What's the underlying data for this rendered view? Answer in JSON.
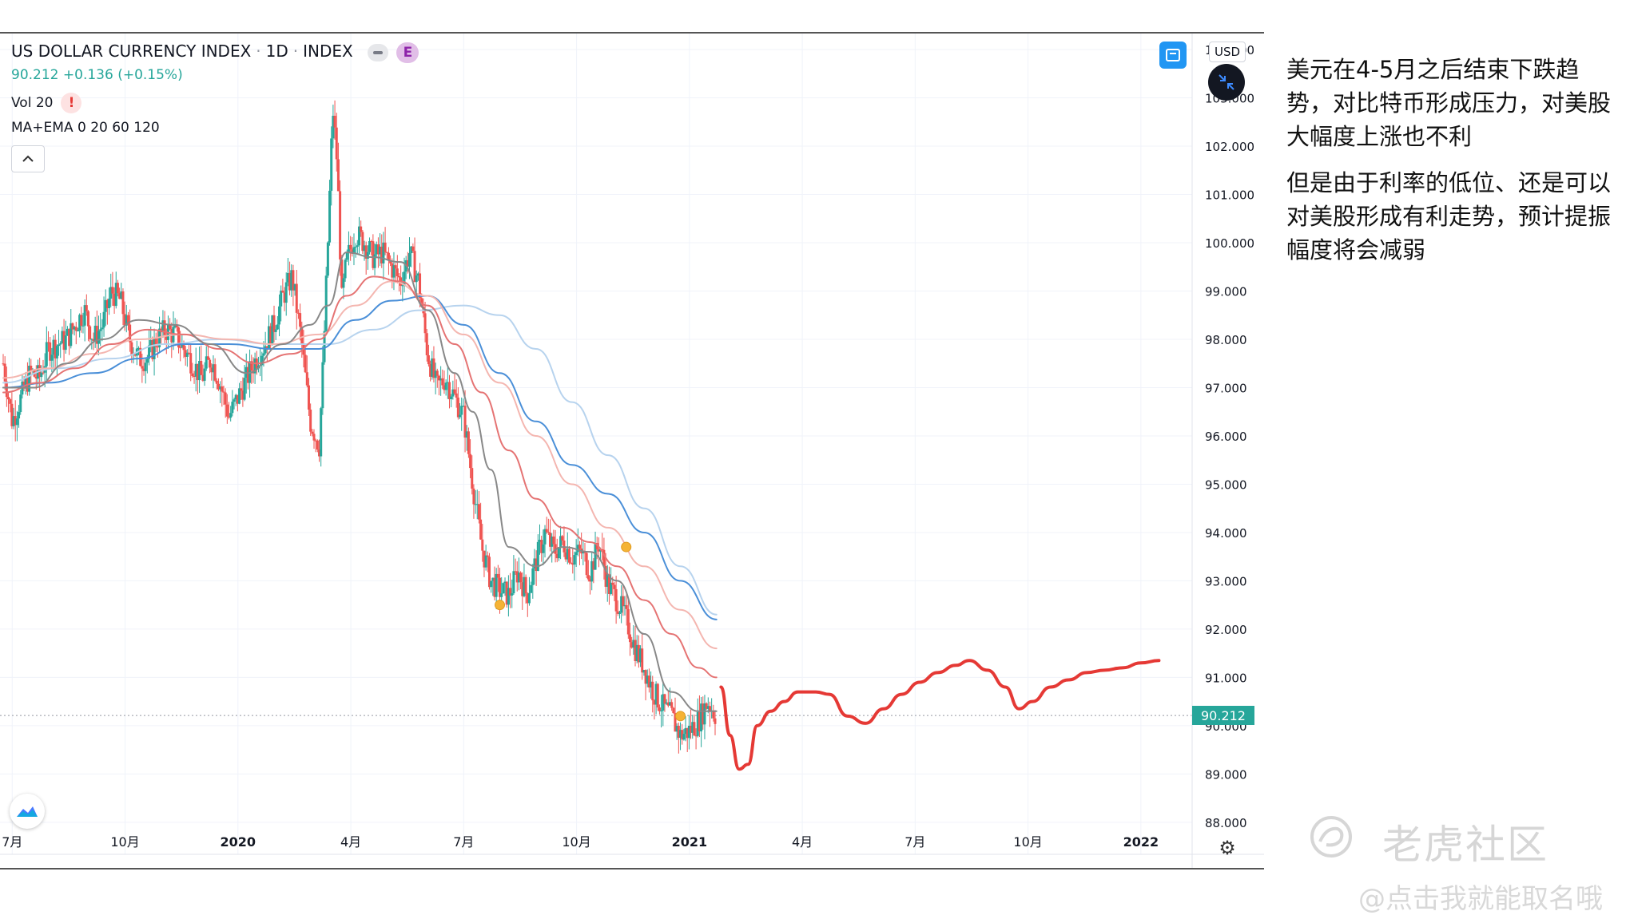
{
  "legend": {
    "symbol": "US DOLLAR CURRENCY INDEX",
    "interval": "1D",
    "exchange": "INDEX",
    "e_badge": "E",
    "price_line": "90.212  +0.136 (+0.15%)",
    "vol_label": "Vol 20",
    "warn_symbol": "!",
    "ma_label": "MA+EMA 0 20 60 120"
  },
  "toolbar": {
    "currency": "USD",
    "fullscreen_icon": "fullscreen-icon",
    "compress_icon": "compress-icon",
    "collapse_icon": "chevron-up-icon",
    "settings_icon": "gear-icon",
    "logo_icon": "tradingview-logo-icon"
  },
  "current_price": "90.212",
  "commentary": {
    "p1": "美元在4-5月之后结束下跌趋势，对比特币形成压力，对美股大幅度上涨也不利",
    "p2": "但是由于利率的低位、还是可以对美股形成有利走势，预计提振幅度将会减弱"
  },
  "watermark": {
    "brand": "老虎社区",
    "user": "@点击我就能取名哦"
  },
  "colors": {
    "up": "#26a69a",
    "down": "#ef5350",
    "forecast": "#e53935",
    "ema_slow": "#4a8fd8",
    "ema_slowest": "#b7d3ee",
    "ma_fast": "#888888",
    "ema_mid": "#e57373",
    "ema_light": "#f4b6b0"
  },
  "chart_data": {
    "type": "line",
    "title": "US DOLLAR CURRENCY INDEX",
    "ylim": [
      87.8,
      104.0
    ],
    "y_ticks": [
      "88.000",
      "89.000",
      "90.000",
      "91.000",
      "92.000",
      "93.000",
      "94.000",
      "95.000",
      "96.000",
      "97.000",
      "98.000",
      "99.000",
      "100.000",
      "101.000",
      "102.000",
      "103.000",
      "104.000"
    ],
    "x_ticks": [
      "7月",
      "10月",
      "2020",
      "4月",
      "7月",
      "10月",
      "2021",
      "4月",
      "7月",
      "10月",
      "2022"
    ],
    "x_tick_times": [
      2019.5,
      2019.75,
      2020.0,
      2020.25,
      2020.5,
      2020.75,
      2021.0,
      2021.25,
      2021.5,
      2021.75,
      2022.0
    ],
    "xlim": [
      2019.48,
      2022.11
    ],
    "series": [
      {
        "name": "price",
        "x": [
          2019.48,
          2019.5,
          2019.52,
          2019.54,
          2019.56,
          2019.58,
          2019.6,
          2019.62,
          2019.64,
          2019.66,
          2019.68,
          2019.7,
          2019.72,
          2019.74,
          2019.76,
          2019.78,
          2019.8,
          2019.82,
          2019.84,
          2019.86,
          2019.88,
          2019.9,
          2019.92,
          2019.94,
          2019.96,
          2019.98,
          2020.0,
          2020.02,
          2020.04,
          2020.06,
          2020.08,
          2020.1,
          2020.12,
          2020.14,
          2020.16,
          2020.18,
          2020.19,
          2020.2,
          2020.21,
          2020.22,
          2020.23,
          2020.24,
          2020.26,
          2020.28,
          2020.3,
          2020.32,
          2020.34,
          2020.36,
          2020.38,
          2020.4,
          2020.42,
          2020.44,
          2020.46,
          2020.48,
          2020.5,
          2020.52,
          2020.54,
          2020.56,
          2020.58,
          2020.6,
          2020.62,
          2020.64,
          2020.66,
          2020.68,
          2020.7,
          2020.72,
          2020.74,
          2020.76,
          2020.78,
          2020.8,
          2020.82,
          2020.84,
          2020.86,
          2020.88,
          2020.9,
          2020.92,
          2020.94,
          2020.96,
          2020.98,
          2021.0,
          2021.02,
          2021.04,
          2021.06
        ],
        "values": [
          97.5,
          96.3,
          96.8,
          97.3,
          97.2,
          97.8,
          97.9,
          98.0,
          98.3,
          98.6,
          98.0,
          98.3,
          99.0,
          98.8,
          98.0,
          97.6,
          97.6,
          98.0,
          98.2,
          98.1,
          97.8,
          97.5,
          97.2,
          97.6,
          97.1,
          96.4,
          96.8,
          97.2,
          97.6,
          97.9,
          98.3,
          98.9,
          99.3,
          98.0,
          96.3,
          95.8,
          97.8,
          100.2,
          102.8,
          101.6,
          98.8,
          99.6,
          100.2,
          100.0,
          99.7,
          99.8,
          99.5,
          99.2,
          99.8,
          99.2,
          97.7,
          97.0,
          97.2,
          96.8,
          96.4,
          95.0,
          93.7,
          93.0,
          92.8,
          92.7,
          93.2,
          92.7,
          93.4,
          94.0,
          93.6,
          93.8,
          93.5,
          93.6,
          93.2,
          93.8,
          92.9,
          92.6,
          92.2,
          91.6,
          91.2,
          90.7,
          90.4,
          90.2,
          89.8,
          89.9,
          90.1,
          90.5,
          90.2
        ]
      },
      {
        "name": "forecast",
        "x": [
          2021.07,
          2021.09,
          2021.11,
          2021.13,
          2021.15,
          2021.18,
          2021.21,
          2021.24,
          2021.28,
          2021.31,
          2021.35,
          2021.39,
          2021.43,
          2021.47,
          2021.51,
          2021.55,
          2021.59,
          2021.62,
          2021.66,
          2021.7,
          2021.73,
          2021.76,
          2021.8,
          2021.84,
          2021.88,
          2021.92,
          2021.96,
          2022.0,
          2022.04
        ],
        "values": [
          90.8,
          89.8,
          89.1,
          89.2,
          90.0,
          90.3,
          90.5,
          90.7,
          90.7,
          90.65,
          90.2,
          90.05,
          90.35,
          90.65,
          90.9,
          91.1,
          91.25,
          91.35,
          91.15,
          90.8,
          90.35,
          90.5,
          90.8,
          90.95,
          91.1,
          91.15,
          91.2,
          91.3,
          91.35
        ]
      },
      {
        "name": "ema_fast",
        "x": [
          2019.48,
          2019.55,
          2019.62,
          2019.7,
          2019.78,
          2019.86,
          2019.94,
          2020.02,
          2020.1,
          2020.16,
          2020.2,
          2020.24,
          2020.3,
          2020.36,
          2020.42,
          2020.48,
          2020.52,
          2020.56,
          2020.6,
          2020.66,
          2020.72,
          2020.78,
          2020.84,
          2020.9,
          2020.96,
          2021.02,
          2021.06
        ],
        "values": [
          97.0,
          97.0,
          97.5,
          98.0,
          98.4,
          98.3,
          97.9,
          97.3,
          97.9,
          98.3,
          98.7,
          99.8,
          99.7,
          99.6,
          98.6,
          97.3,
          96.5,
          95.3,
          93.7,
          93.3,
          93.7,
          93.6,
          93.0,
          91.9,
          90.7,
          90.3,
          90.3
        ]
      },
      {
        "name": "ema_mid",
        "x": [
          2019.48,
          2019.56,
          2019.64,
          2019.72,
          2019.8,
          2019.88,
          2019.96,
          2020.04,
          2020.12,
          2020.18,
          2020.24,
          2020.3,
          2020.36,
          2020.42,
          2020.48,
          2020.54,
          2020.6,
          2020.66,
          2020.72,
          2020.78,
          2020.84,
          2020.9,
          2020.96,
          2021.02,
          2021.06
        ],
        "values": [
          96.9,
          97.1,
          97.4,
          97.9,
          98.2,
          98.1,
          97.8,
          97.5,
          97.7,
          98.0,
          98.9,
          99.3,
          99.2,
          98.7,
          97.9,
          96.9,
          95.7,
          94.7,
          94.1,
          93.8,
          93.3,
          92.6,
          91.9,
          91.2,
          91.0
        ]
      },
      {
        "name": "ema_light",
        "x": [
          2019.48,
          2019.58,
          2019.68,
          2019.78,
          2019.88,
          2019.98,
          2020.08,
          2020.18,
          2020.26,
          2020.34,
          2020.42,
          2020.5,
          2020.58,
          2020.66,
          2020.74,
          2020.82,
          2020.9,
          2020.98,
          2021.06
        ],
        "values": [
          97.2,
          97.4,
          97.7,
          98.0,
          98.1,
          98.0,
          97.9,
          98.1,
          98.7,
          99.2,
          98.9,
          98.1,
          97.1,
          96.0,
          95.0,
          94.1,
          93.3,
          92.4,
          91.6
        ]
      },
      {
        "name": "ema_slow",
        "x": [
          2019.48,
          2019.58,
          2019.68,
          2019.78,
          2019.88,
          2019.98,
          2020.08,
          2020.18,
          2020.26,
          2020.34,
          2020.42,
          2020.5,
          2020.58,
          2020.66,
          2020.74,
          2020.82,
          2020.9,
          2020.98,
          2021.06
        ],
        "values": [
          97.0,
          97.1,
          97.3,
          97.6,
          97.9,
          97.9,
          97.8,
          97.8,
          98.4,
          98.8,
          98.9,
          98.3,
          97.3,
          96.3,
          95.4,
          94.8,
          94.0,
          93.0,
          92.2
        ]
      },
      {
        "name": "ema_slowest",
        "x": [
          2019.48,
          2019.6,
          2019.72,
          2019.84,
          2019.96,
          2020.08,
          2020.2,
          2020.3,
          2020.4,
          2020.5,
          2020.58,
          2020.66,
          2020.74,
          2020.82,
          2020.9,
          2020.98,
          2021.06
        ],
        "values": [
          97.1,
          97.4,
          97.6,
          97.9,
          98.0,
          97.9,
          97.9,
          98.2,
          98.6,
          98.7,
          98.5,
          97.8,
          96.7,
          95.6,
          94.5,
          93.3,
          92.3
        ]
      }
    ],
    "markers": [
      {
        "x": 2020.58,
        "y": 92.5
      },
      {
        "x": 2020.86,
        "y": 93.7
      },
      {
        "x": 2020.98,
        "y": 90.2
      }
    ],
    "current_price": 90.212,
    "grid": true,
    "price_axis_side": "right"
  }
}
